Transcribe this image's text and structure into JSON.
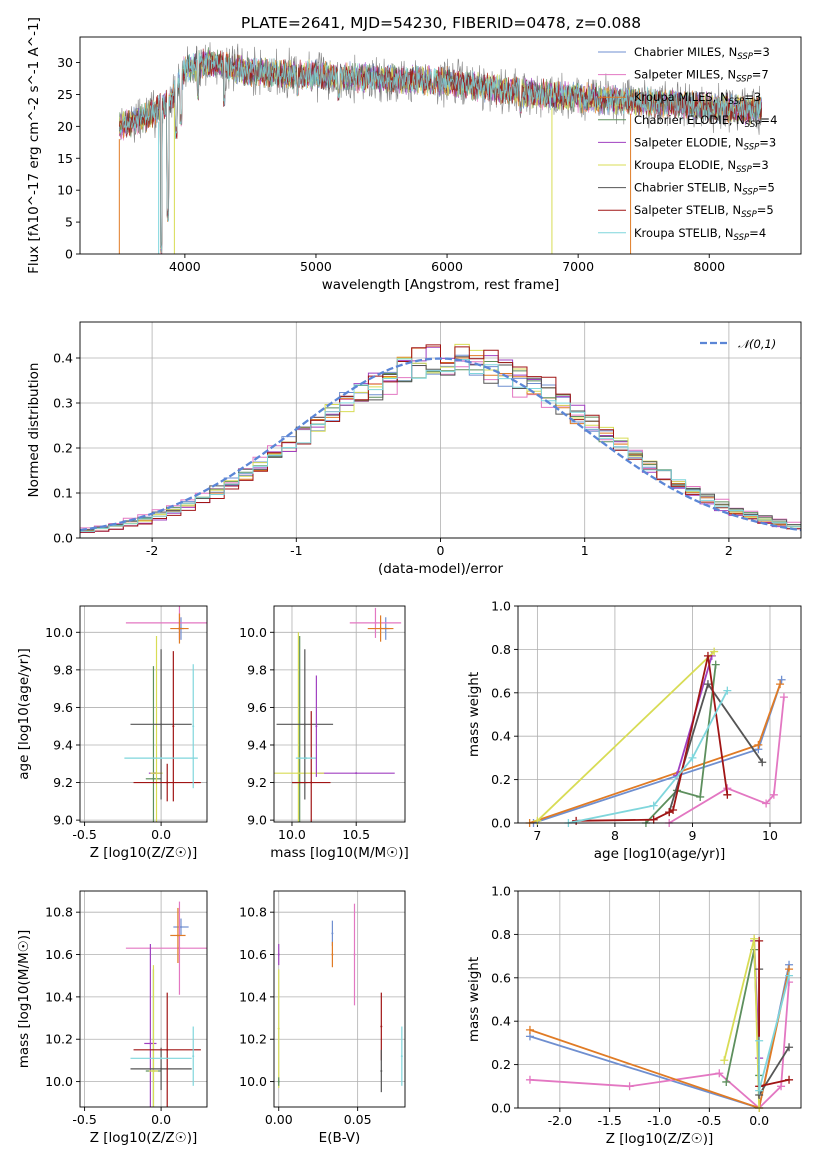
{
  "figure": {
    "title": "PLATE=2641, MJD=54230, FIBERID=0478, z=0.088"
  },
  "colors": {
    "Chabrier MILES": "#6f8fd0",
    "Salpeter MILES": "#e377c2",
    "Kroupa MILES": "#e07b25",
    "Chabrier ELODIE": "#5d8f5d",
    "Salpeter ELODIE": "#a040c0",
    "Kroupa ELODIE": "#d8dc55",
    "Chabrier STELIB": "#555555",
    "Salpeter STELIB": "#a01515",
    "Kroupa STELIB": "#7fd6dc",
    "data": "#7f7f7f",
    "normal": "#5b86d6"
  },
  "chart_data": [
    {
      "panel": "spectrum",
      "type": "line",
      "title": "PLATE=2641, MJD=54230, FIBERID=0478, z=0.088",
      "xlabel": "wavelength [Angstrom, rest frame]",
      "ylabel": "Flux [fλ10^-17 erg cm^-2 s^-1 A^-1]",
      "xlim": [
        3200,
        8700
      ],
      "ylim": [
        0,
        34
      ],
      "xticks": [
        "4000",
        "5000",
        "6000",
        "7000",
        "8000"
      ],
      "yticks": [
        "0",
        "5",
        "10",
        "15",
        "20",
        "25",
        "30"
      ],
      "grid": false,
      "legend_position": "top-right",
      "legend": [
        {
          "name": "Chabrier MILES",
          "n": "3"
        },
        {
          "name": "Salpeter MILES",
          "n": "7"
        },
        {
          "name": "Kroupa MILES",
          "n": "3"
        },
        {
          "name": "Chabrier ELODIE",
          "n": "4"
        },
        {
          "name": "Salpeter ELODIE",
          "n": "3"
        },
        {
          "name": "Kroupa ELODIE",
          "n": "3"
        },
        {
          "name": "Chabrier STELIB",
          "n": "5"
        },
        {
          "name": "Salpeter STELIB",
          "n": "5"
        },
        {
          "name": "Kroupa STELIB",
          "n": "4"
        }
      ],
      "continuum": [
        [
          3500,
          20
        ],
        [
          3700,
          21.5
        ],
        [
          3900,
          24
        ],
        [
          4000,
          29
        ],
        [
          4200,
          30
        ],
        [
          4500,
          28.5
        ],
        [
          5000,
          28
        ],
        [
          5500,
          27.5
        ],
        [
          6000,
          27
        ],
        [
          6500,
          25.5
        ],
        [
          7000,
          24.5
        ],
        [
          7400,
          24
        ],
        [
          8000,
          23
        ],
        [
          8400,
          22.5
        ]
      ],
      "dips": [
        [
          3820,
          0
        ],
        [
          3870,
          5
        ],
        [
          3935,
          18
        ],
        [
          3970,
          20
        ],
        [
          4100,
          24
        ],
        [
          4300,
          23
        ],
        [
          4860,
          24.5
        ],
        [
          5175,
          24
        ],
        [
          5890,
          25
        ],
        [
          6563,
          22
        ]
      ],
      "model_cutoffs": [
        3500,
        3800,
        3920,
        6800,
        7400
      ]
    },
    {
      "panel": "residuals",
      "type": "line",
      "xlabel": "(data-model)/error",
      "ylabel": "Normed distribution",
      "xlim": [
        -2.5,
        2.5
      ],
      "ylim": [
        0,
        0.48
      ],
      "xticks": [
        "-2",
        "-1",
        "0",
        "1",
        "2"
      ],
      "yticks": [
        "0.0",
        "0.1",
        "0.2",
        "0.3",
        "0.4"
      ],
      "grid": true,
      "legend_position": "top-right",
      "legend": [
        {
          "name": "𝒩(0,1)"
        }
      ],
      "bin_width": 0.1,
      "model_center": 0.1,
      "model_sigma": 1.0
    },
    {
      "panel": "age_vs_Z",
      "type": "scatter",
      "xlabel": "Z [log10(Z/Z☉)]",
      "ylabel": "age  [log10(age/yr)]",
      "xlim": [
        -0.53,
        0.3
      ],
      "ylim": [
        8.99,
        10.14
      ],
      "xticks": [
        "-0.5",
        "0.0"
      ],
      "yticks": [
        "9.0",
        "9.2",
        "9.4",
        "9.6",
        "9.8",
        "10.0"
      ],
      "grid": true,
      "points": [
        {
          "model": "Chabrier MILES",
          "x": 0.13,
          "y": 10.02,
          "xerr": 0.02,
          "yerr": 0.06
        },
        {
          "model": "Salpeter MILES",
          "x": 0.12,
          "y": 10.05,
          "xerr": 0.35,
          "yerr": 0.09
        },
        {
          "model": "Kroupa MILES",
          "x": 0.12,
          "y": 10.02,
          "xerr": 0.06,
          "yerr": 0.08
        },
        {
          "model": "Chabrier ELODIE",
          "x": -0.05,
          "y": 9.22,
          "xerr": 0.05,
          "yerr": 0.6
        },
        {
          "model": "Salpeter ELODIE",
          "x": -0.04,
          "y": 9.25,
          "xerr": 0.04,
          "yerr": 0.0
        },
        {
          "model": "Kroupa ELODIE",
          "x": -0.03,
          "y": 9.25,
          "xerr": 0.04,
          "yerr": 0.73
        },
        {
          "model": "Chabrier STELIB",
          "x": 0.0,
          "y": 9.51,
          "xerr": 0.2,
          "yerr": 0.4
        },
        {
          "model": "Salpeter STELIB",
          "x": 0.04,
          "y": 9.2,
          "xerr": 0.22,
          "yerr": 0.1
        },
        {
          "model": "Salpeter STELIB",
          "x": 0.08,
          "y": 9.5,
          "xerr": 0.0,
          "yerr": 0.4
        },
        {
          "model": "Kroupa STELIB",
          "x": 0.0,
          "y": 9.33,
          "xerr": 0.24,
          "yerr": 0.0
        },
        {
          "model": "Kroupa STELIB",
          "x": 0.21,
          "y": 9.5,
          "xerr": 0.0,
          "yerr": 0.33
        }
      ]
    },
    {
      "panel": "age_vs_mass",
      "type": "scatter",
      "xlabel": "mass [log10(M/M☉)]",
      "ylabel": "",
      "xlim": [
        9.86,
        10.88
      ],
      "ylim": [
        8.99,
        10.14
      ],
      "xticks": [
        "10.0",
        "10.5"
      ],
      "yticks": [
        "9.0",
        "9.2",
        "9.4",
        "9.6",
        "9.8",
        "10.0"
      ],
      "grid": true,
      "points": [
        {
          "model": "Chabrier MILES",
          "x": 10.73,
          "y": 10.02,
          "xerr": 0.03,
          "yerr": 0.06
        },
        {
          "model": "Salpeter MILES",
          "x": 10.65,
          "y": 10.05,
          "xerr": 0.2,
          "yerr": 0.08
        },
        {
          "model": "Kroupa MILES",
          "x": 10.69,
          "y": 10.02,
          "xerr": 0.1,
          "yerr": 0.07
        },
        {
          "model": "Chabrier ELODIE",
          "x": 10.06,
          "y": 9.2,
          "xerr": 0.06,
          "yerr": 0.78
        },
        {
          "model": "Salpeter ELODIE",
          "x": 10.5,
          "y": 9.25,
          "xerr": 0.3,
          "yerr": 0.0
        },
        {
          "model": "Kroupa ELODIE",
          "x": 10.05,
          "y": 9.25,
          "xerr": 0.2,
          "yerr": 0.75
        },
        {
          "model": "Chabrier STELIB",
          "x": 10.1,
          "y": 9.51,
          "xerr": 0.22,
          "yerr": 0.4
        },
        {
          "model": "Salpeter STELIB",
          "x": 10.15,
          "y": 9.2,
          "xerr": 0.15,
          "yerr": 0.38
        },
        {
          "model": "Kroupa STELIB",
          "x": 10.11,
          "y": 9.33,
          "xerr": 0.08,
          "yerr": 0.0
        },
        {
          "model": "Salpeter ELODIE",
          "x": 10.19,
          "y": 9.5,
          "xerr": 0.0,
          "yerr": 0.27
        }
      ]
    },
    {
      "panel": "weight_vs_age",
      "type": "line",
      "xlabel": "age  [log10(age/yr)]",
      "ylabel": "mass weight",
      "xlim": [
        6.75,
        10.4
      ],
      "ylim": [
        0,
        1.0
      ],
      "xticks": [
        "7",
        "8",
        "9",
        "10"
      ],
      "yticks": [
        "0.0",
        "0.2",
        "0.4",
        "0.6",
        "0.8",
        "1.0"
      ],
      "grid": true,
      "series": [
        {
          "model": "Chabrier MILES",
          "x": [
            6.95,
            9.85,
            10.15
          ],
          "y": [
            0.0,
            0.34,
            0.66
          ]
        },
        {
          "model": "Salpeter MILES",
          "x": [
            8.7,
            9.45,
            9.95,
            10.05,
            10.18
          ],
          "y": [
            0.0,
            0.16,
            0.09,
            0.13,
            0.58
          ]
        },
        {
          "model": "Kroupa MILES",
          "x": [
            6.9,
            9.85,
            10.13
          ],
          "y": [
            0.0,
            0.36,
            0.64
          ]
        },
        {
          "model": "Chabrier ELODIE",
          "x": [
            8.4,
            8.8,
            9.1,
            9.3
          ],
          "y": [
            0.0,
            0.15,
            0.12,
            0.73
          ]
        },
        {
          "model": "Salpeter ELODIE",
          "x": [
            8.8,
            9.25
          ],
          "y": [
            0.22,
            0.77
          ]
        },
        {
          "model": "Kroupa ELODIE",
          "x": [
            7.0,
            9.28
          ],
          "y": [
            0.01,
            0.79
          ]
        },
        {
          "model": "Chabrier STELIB",
          "x": [
            8.7,
            9.2,
            9.9
          ],
          "y": [
            0.05,
            0.64,
            0.28
          ]
        },
        {
          "model": "Salpeter STELIB",
          "x": [
            7.5,
            8.5,
            8.7,
            8.75,
            9.2,
            9.45
          ],
          "y": [
            0.01,
            0.015,
            0.05,
            0.06,
            0.77,
            0.13
          ]
        },
        {
          "model": "Kroupa STELIB",
          "x": [
            7.4,
            8.5,
            9.0,
            9.45
          ],
          "y": [
            0.0,
            0.08,
            0.3,
            0.61
          ]
        }
      ]
    },
    {
      "panel": "mass_vs_Z",
      "type": "scatter",
      "xlabel": "Z [log10(Z/Z☉)]",
      "ylabel": "mass [log10(M/M☉)]",
      "xlim": [
        -0.53,
        0.3
      ],
      "ylim": [
        9.88,
        10.9
      ],
      "xticks": [
        "-0.5",
        "0.0"
      ],
      "yticks": [
        "10.0",
        "10.2",
        "10.4",
        "10.6",
        "10.8"
      ],
      "grid": true,
      "points": [
        {
          "model": "Chabrier MILES",
          "x": 0.13,
          "y": 10.73,
          "xerr": 0.05,
          "yerr": 0.04
        },
        {
          "model": "Salpeter MILES",
          "x": 0.12,
          "y": 10.63,
          "xerr": 0.35,
          "yerr": 0.22
        },
        {
          "model": "Kroupa MILES",
          "x": 0.11,
          "y": 10.69,
          "xerr": 0.05,
          "yerr": 0.13
        },
        {
          "model": "Chabrier ELODIE",
          "x": -0.05,
          "y": 10.05,
          "xerr": 0.05,
          "yerr": 0.48
        },
        {
          "model": "Salpeter ELODIE",
          "x": -0.07,
          "y": 10.18,
          "xerr": 0.04,
          "yerr": 0.47
        },
        {
          "model": "Kroupa ELODIE",
          "x": -0.05,
          "y": 10.05,
          "xerr": 0.03,
          "yerr": 0.5
        },
        {
          "model": "Chabrier STELIB",
          "x": 0.0,
          "y": 10.06,
          "xerr": 0.2,
          "yerr": 0.1
        },
        {
          "model": "Salpeter STELIB",
          "x": 0.04,
          "y": 10.15,
          "xerr": 0.22,
          "yerr": 0.27
        },
        {
          "model": "Kroupa STELIB",
          "x": 0.0,
          "y": 10.11,
          "xerr": 0.2,
          "yerr": 0.0
        },
        {
          "model": "Kroupa STELIB",
          "x": 0.21,
          "y": 10.12,
          "xerr": 0.0,
          "yerr": 0.14
        }
      ]
    },
    {
      "panel": "mass_vs_ebv",
      "type": "scatter",
      "xlabel": "E(B-V)",
      "ylabel": "",
      "xlim": [
        -0.003,
        0.08
      ],
      "ylim": [
        9.88,
        10.9
      ],
      "xticks": [
        "0.00",
        "0.05"
      ],
      "yticks": [
        "10.0",
        "10.2",
        "10.4",
        "10.6",
        "10.8"
      ],
      "grid": true,
      "points": [
        {
          "model": "Salpeter ELODIE",
          "x": 0.0,
          "y": 10.6,
          "xerr": 0.0,
          "yerr": 0.05
        },
        {
          "model": "Kroupa ELODIE",
          "x": 0.0,
          "y": 10.25,
          "xerr": 0.0,
          "yerr": 0.28
        },
        {
          "model": "Chabrier ELODIE",
          "x": 0.0,
          "y": 10.0,
          "xerr": 0.0,
          "yerr": 0.02
        },
        {
          "model": "Chabrier MILES",
          "x": 0.034,
          "y": 10.7,
          "xerr": 0.0,
          "yerr": 0.06
        },
        {
          "model": "Kroupa MILES",
          "x": 0.034,
          "y": 10.6,
          "xerr": 0.0,
          "yerr": 0.06
        },
        {
          "model": "Salpeter MILES",
          "x": 0.048,
          "y": 10.6,
          "xerr": 0.0,
          "yerr": 0.24
        },
        {
          "model": "Salpeter STELIB",
          "x": 0.065,
          "y": 10.26,
          "xerr": 0.0,
          "yerr": 0.16
        },
        {
          "model": "Chabrier STELIB",
          "x": 0.065,
          "y": 10.05,
          "xerr": 0.0,
          "yerr": 0.1
        },
        {
          "model": "Kroupa STELIB",
          "x": 0.078,
          "y": 10.12,
          "xerr": 0.0,
          "yerr": 0.14
        }
      ]
    },
    {
      "panel": "weight_vs_Z",
      "type": "line",
      "xlabel": "Z [log10(Z/Z☉)]",
      "ylabel": "mass weight",
      "xlim": [
        -2.42,
        0.42
      ],
      "ylim": [
        0,
        1.0
      ],
      "xticks": [
        "-2.0",
        "-1.5",
        "-1.0",
        "-0.5",
        "0.0"
      ],
      "yticks": [
        "0.0",
        "0.2",
        "0.4",
        "0.6",
        "0.8",
        "1.0"
      ],
      "grid": true,
      "series": [
        {
          "model": "Chabrier MILES",
          "x": [
            -2.3,
            0.0,
            0.3
          ],
          "y": [
            0.33,
            0.0,
            0.66
          ]
        },
        {
          "model": "Salpeter MILES",
          "x": [
            -2.3,
            -1.3,
            -0.4,
            0.0,
            0.22,
            0.3
          ],
          "y": [
            0.13,
            0.1,
            0.16,
            0.0,
            0.1,
            0.58
          ]
        },
        {
          "model": "Kroupa MILES",
          "x": [
            -2.3,
            0.0,
            0.3
          ],
          "y": [
            0.36,
            0.0,
            0.64
          ]
        },
        {
          "model": "Chabrier ELODIE",
          "x": [
            -0.33,
            -0.05,
            0.0
          ],
          "y": [
            0.12,
            0.73,
            0.15
          ]
        },
        {
          "model": "Salpeter ELODIE",
          "x": [
            -0.05,
            0.0
          ],
          "y": [
            0.77,
            0.23
          ]
        },
        {
          "model": "Kroupa ELODIE",
          "x": [
            -0.35,
            -0.05,
            0.0
          ],
          "y": [
            0.22,
            0.78,
            0.0
          ]
        },
        {
          "model": "Chabrier STELIB",
          "x": [
            0.0,
            0.0,
            0.3
          ],
          "y": [
            0.64,
            0.06,
            0.28
          ]
        },
        {
          "model": "Salpeter STELIB",
          "x": [
            0.0,
            0.0,
            0.3
          ],
          "y": [
            0.77,
            0.1,
            0.13
          ]
        },
        {
          "model": "Kroupa STELIB",
          "x": [
            0.0,
            0.0,
            0.3
          ],
          "y": [
            0.31,
            0.08,
            0.61
          ]
        }
      ]
    }
  ]
}
